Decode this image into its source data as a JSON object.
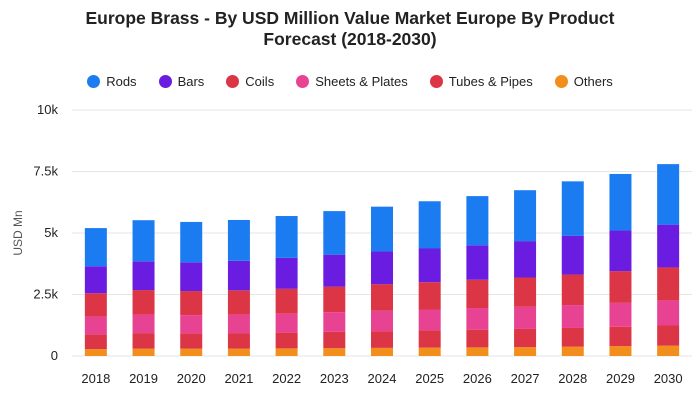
{
  "chart_data": {
    "type": "bar",
    "stacked": true,
    "title_line1": "Europe Brass - By USD Million Value Market Europe By Product",
    "title_line2": "Forecast (2018-2030)",
    "xlabel": "",
    "ylabel": "USD Mn",
    "ylim": [
      0,
      10000
    ],
    "yticks": [
      0,
      2500,
      5000,
      7500,
      10000
    ],
    "ytick_labels": [
      "0",
      "2.5k",
      "5k",
      "7.5k",
      "10k"
    ],
    "grid": true,
    "legend_position": "top-center",
    "categories": [
      "2018",
      "2019",
      "2020",
      "2021",
      "2022",
      "2023",
      "2024",
      "2025",
      "2026",
      "2027",
      "2028",
      "2029",
      "2030"
    ],
    "series": [
      {
        "name": "Others",
        "color": "#f28e1c",
        "values": [
          280,
          300,
          300,
          300,
          310,
          320,
          330,
          340,
          350,
          360,
          380,
          400,
          420
        ]
      },
      {
        "name": "Tubes & Pipes",
        "color": "#dc3545",
        "values": [
          600,
          630,
          620,
          630,
          640,
          660,
          680,
          700,
          720,
          740,
          760,
          790,
          820
        ]
      },
      {
        "name": "Sheets & Plates",
        "color": "#e84393",
        "values": [
          720,
          760,
          740,
          750,
          770,
          800,
          830,
          850,
          880,
          900,
          930,
          970,
          1020
        ]
      },
      {
        "name": "Coils",
        "color": "#dc3545",
        "values": [
          950,
          990,
          980,
          990,
          1010,
          1040,
          1080,
          1110,
          1150,
          1190,
          1240,
          1290,
          1340
        ]
      },
      {
        "name": "Bars",
        "color": "#6a1de0",
        "values": [
          1100,
          1170,
          1170,
          1200,
          1260,
          1300,
          1330,
          1370,
          1400,
          1480,
          1580,
          1650,
          1740
        ]
      },
      {
        "name": "Rods",
        "color": "#1a7cf0",
        "values": [
          1550,
          1670,
          1640,
          1660,
          1700,
          1770,
          1820,
          1920,
          2000,
          2070,
          2210,
          2300,
          2460
        ]
      }
    ],
    "legend_order": [
      "Rods",
      "Bars",
      "Coils",
      "Sheets & Plates",
      "Tubes & Pipes",
      "Others"
    ]
  }
}
